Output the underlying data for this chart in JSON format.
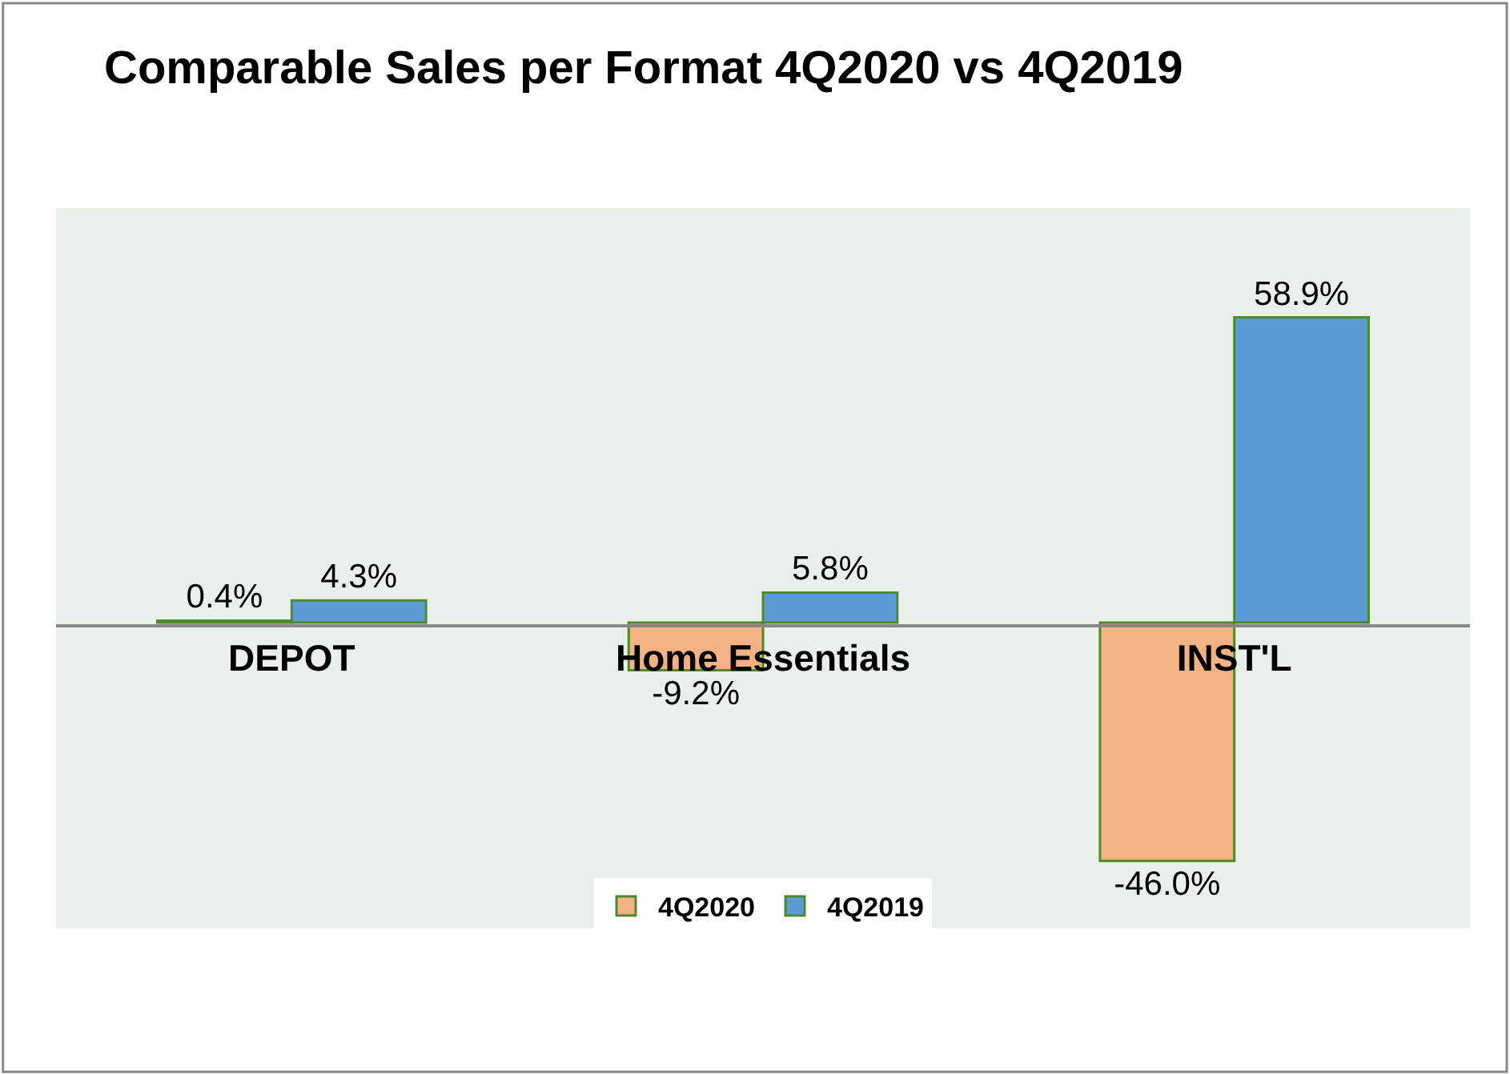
{
  "chart_data": {
    "type": "bar",
    "title": "Comparable Sales per Format 4Q2020 vs 4Q2019",
    "categories": [
      "DEPOT",
      "Home Essentials",
      "INST'L"
    ],
    "series": [
      {
        "name": "4Q2020",
        "color": "#f4b183",
        "values": [
          0.4,
          -9.2,
          -46.0
        ],
        "value_labels": [
          "0.4%",
          "-9.2%",
          "-46.0%"
        ]
      },
      {
        "name": "4Q2019",
        "color": "#5b9bd5",
        "values": [
          4.3,
          5.8,
          58.9
        ],
        "value_labels": [
          "4.3%",
          "5.8%",
          "58.9%"
        ]
      }
    ],
    "ylim": [
      -59,
      80
    ],
    "tick_labels": "x",
    "grid": false,
    "legend": "bottom"
  }
}
